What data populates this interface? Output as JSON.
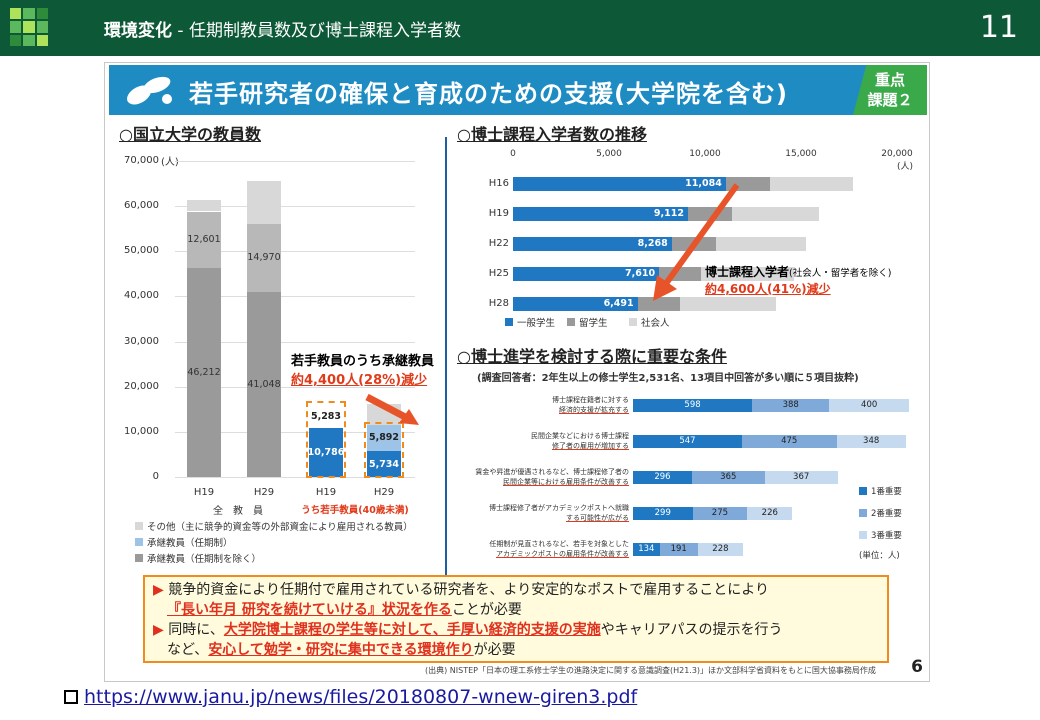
{
  "header": {
    "title_bold": "環境変化",
    "title_rest": " - 任期制教員数及び博士課程入学者数",
    "page_number": "11"
  },
  "slide": {
    "banner_title": "若手研究者の確保と育成のための支援(大学院を含む)",
    "badge": [
      "重点",
      "課題２"
    ],
    "page_no": "6",
    "source": "(出典) NISTEP「日本の理工系修士学生の進路決定に関する意識調査(H21.3)」ほか文部科学省資料をもとに国大協事務局作成"
  },
  "left_chart": {
    "heading": "○国立大学の教員数",
    "unit": "(人)",
    "yticks": [
      "70,000",
      "60,000",
      "50,000",
      "40,000",
      "30,000",
      "20,000",
      "10,000",
      "0"
    ],
    "bars": [
      {
        "label": "H19",
        "segs": [
          {
            "value": 46212,
            "label": "46,212"
          },
          {
            "value": 12601,
            "label": "12,601"
          },
          {
            "value": 2500,
            "label": ""
          }
        ]
      },
      {
        "label": "H29",
        "segs": [
          {
            "value": 41048,
            "label": "41,048"
          },
          {
            "value": 14970,
            "label": "14,970"
          },
          {
            "value": 9500,
            "label": ""
          }
        ]
      },
      {
        "label": "H19",
        "segs": [
          {
            "value": 10786,
            "label": "10,786"
          },
          {
            "value": 5283,
            "label": "5,283"
          }
        ]
      },
      {
        "label": "H29",
        "segs": [
          {
            "value": 5734,
            "label": "5,734"
          },
          {
            "value": 5892,
            "label": "5,892"
          },
          {
            "value": 4500,
            "label": ""
          }
        ]
      }
    ],
    "group1": "全　教　員",
    "group2": "うち若手教員(40歳未満)",
    "callout_line1": "若手教員のうち承継教員",
    "callout_line2": "約4,400人(28%)減少",
    "legend": [
      {
        "color": "#d8d8d8",
        "text": "その他（主に競争的資金等の外部資金により雇用される教員）"
      },
      {
        "color": "#9dc3e6",
        "text": "承継教員（任期制）"
      },
      {
        "color": "#9a9a9a",
        "text": "承継教員（任期制を除く）"
      }
    ]
  },
  "right_chart": {
    "heading": "○博士課程入学者数の推移",
    "xticks": [
      "0",
      "5,000",
      "10,000",
      "15,000",
      "20,000"
    ],
    "unit": "(人)",
    "rows": [
      {
        "label": "H16",
        "a": 11084,
        "a_label": "11,084",
        "b": 2300,
        "c": 4300
      },
      {
        "label": "H19",
        "a": 9112,
        "a_label": "9,112",
        "b": 2300,
        "c": 4500
      },
      {
        "label": "H22",
        "a": 8268,
        "a_label": "8,268",
        "b": 2300,
        "c": 4700
      },
      {
        "label": "H25",
        "a": 7610,
        "a_label": "7,610",
        "b": 2200,
        "c": 4800
      },
      {
        "label": "H28",
        "a": 6491,
        "a_label": "6,491",
        "b": 2200,
        "c": 5000
      }
    ],
    "legend": [
      "一般学生",
      "留学生",
      "社会人"
    ],
    "callout_line1": "博士課程入学者",
    "callout_note": "(社会人・留学者を除く)",
    "callout_line2": "約4,600人(41%)減少"
  },
  "survey": {
    "heading": "○博士進学を検討する際に重要な条件",
    "sub": "(調査回答者：2年生以上の修士学生2,531名、13項目中回答が多い順に５項目抜粋)",
    "rows": [
      {
        "label1": "博士課程在籍者に対する",
        "label2": "経済的支援が拡充する",
        "v": [
          598,
          388,
          400
        ]
      },
      {
        "label1": "民間企業などにおける博士課程",
        "label2": "修了者の雇用が増加する",
        "v": [
          547,
          475,
          348
        ]
      },
      {
        "label1": "賃金や昇進が優遇されるなど、博士課程修了者の",
        "label2": "民間企業等における雇用条件が改善する",
        "v": [
          296,
          365,
          367
        ]
      },
      {
        "label1": "博士課程修了者がアカデミックポストへ就職",
        "label2": "する可能性が広がる",
        "v": [
          299,
          275,
          226
        ]
      },
      {
        "label1": "任期制が見直されるなど、若手を対象とした",
        "label2": "アカデミックポストの雇用条件が改善する",
        "v": [
          134,
          191,
          228
        ]
      }
    ],
    "legend": [
      "1番重要",
      "2番重要",
      "3番重要"
    ],
    "unit": "(単位：人)"
  },
  "bottom": {
    "l1a": "競争的資金により任期付で雇用されている研究者を、より安定的なポストで雇用することにより",
    "l2u": "『長い年月 研究を続けていける』状況を作る",
    "l2b": "ことが必要",
    "l3a": "同時に、",
    "l3u": "大学院博士課程の学生等に対して、手厚い経済的支援の実施",
    "l3b": "やキャリアパスの提示を行う",
    "l4a": "など、",
    "l4u": "安心して勉学・研究に集中できる環境作り",
    "l4b": "が必要"
  },
  "link": "https://www.janu.jp/news/files/20180807-wnew-giren3.pdf",
  "colors": {
    "header": "#0d5836",
    "banner": "#1e8bc3",
    "blue": "#1f78c1",
    "gray": "#9a9a9a",
    "lightgray": "#d8d8d8",
    "red": "#e03a1a"
  }
}
